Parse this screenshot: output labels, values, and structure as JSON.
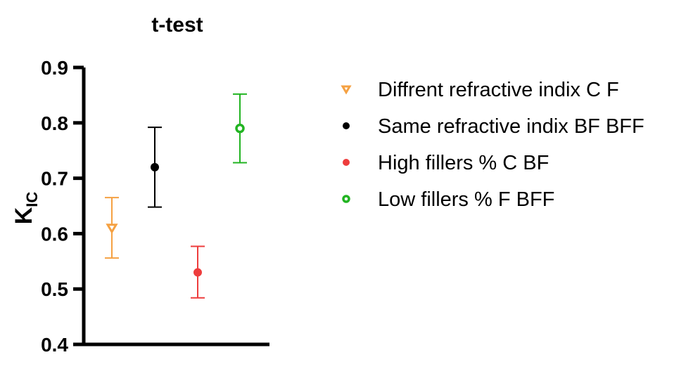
{
  "chart_data": {
    "type": "scatter",
    "title": "t-test",
    "ylabel_main": "K",
    "ylabel_sub": "IC",
    "xlabel": "",
    "ylim": [
      0.4,
      0.9
    ],
    "y_ticks": [
      "0.4",
      "0.5",
      "0.6",
      "0.7",
      "0.8",
      "0.9"
    ],
    "grid": false,
    "legend_position": "right",
    "series": [
      {
        "name": "Diffrent refractive indix C F",
        "mean": 0.61,
        "upper": 0.665,
        "lower": 0.556,
        "marker": "triangle-down-open",
        "color": "#f5a142"
      },
      {
        "name": "Same refractive indix BF BFF",
        "mean": 0.72,
        "upper": 0.792,
        "lower": 0.648,
        "marker": "circle-filled",
        "color": "#000000"
      },
      {
        "name": "High fillers % C BF",
        "mean": 0.53,
        "upper": 0.577,
        "lower": 0.484,
        "marker": "circle-filled",
        "color": "#ee3d3d"
      },
      {
        "name": "Low fillers % F BFF",
        "mean": 0.79,
        "upper": 0.852,
        "lower": 0.728,
        "marker": "circle-open",
        "color": "#22b422"
      }
    ]
  }
}
